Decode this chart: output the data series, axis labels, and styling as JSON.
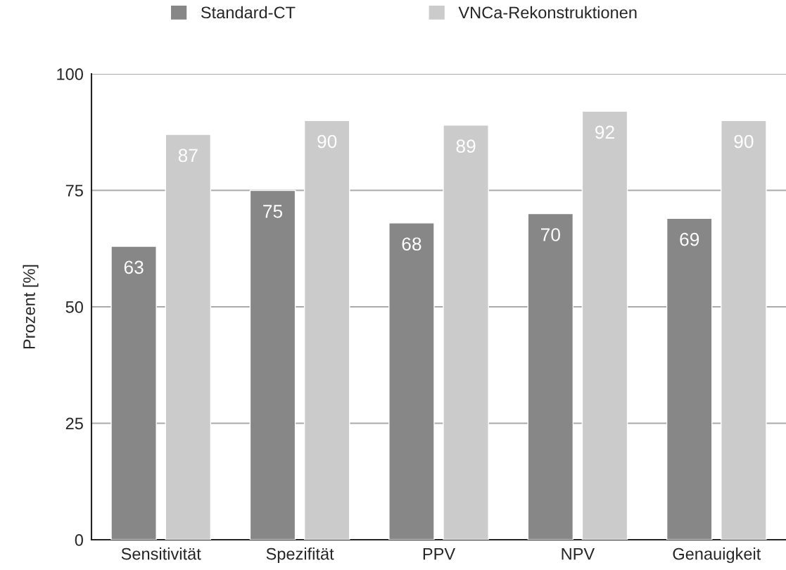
{
  "chart_data": {
    "type": "bar",
    "ylabel": "Prozent [%]",
    "categories": [
      "Sensitivität",
      "Spezifität",
      "PPV",
      "NPV",
      "Genauigkeit"
    ],
    "series": [
      {
        "name": "Standard-CT",
        "color": "#878787",
        "values": [
          63,
          75,
          68,
          70,
          69
        ]
      },
      {
        "name": "VNCa-Rekonstruktionen",
        "color": "#cbcbcb",
        "values": [
          87,
          90,
          89,
          92,
          90
        ]
      }
    ],
    "ylim": [
      0,
      100
    ],
    "yticks": [
      0,
      25,
      50,
      75,
      100
    ],
    "grid": "y",
    "legend": "top",
    "data_labels": true
  }
}
